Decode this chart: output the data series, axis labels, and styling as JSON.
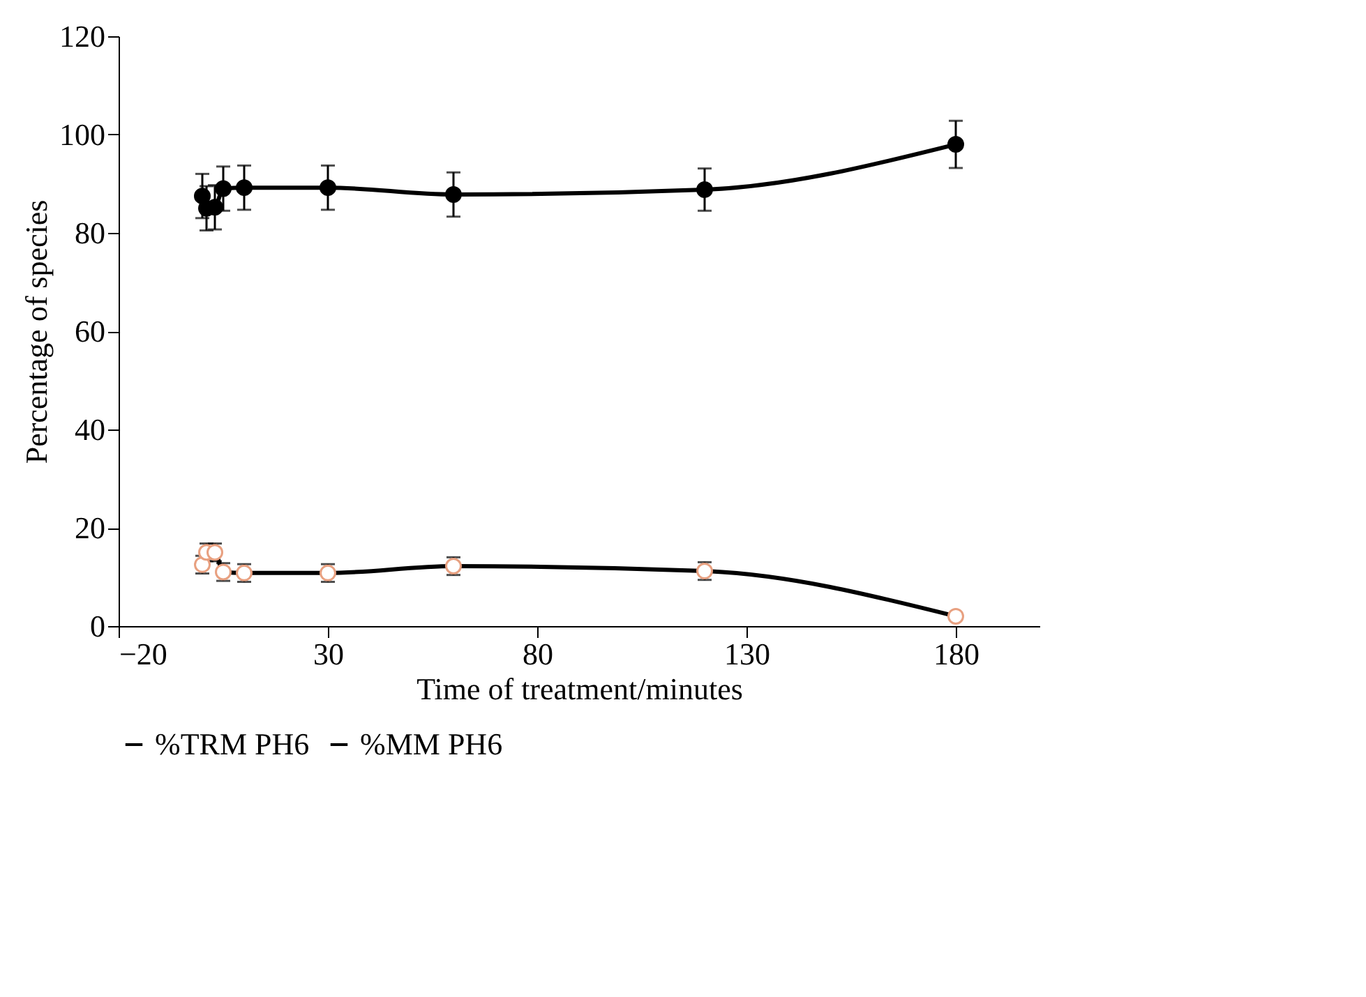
{
  "chart_data": {
    "type": "line",
    "xlabel": "Time of treatment/minutes",
    "ylabel": "Percentage  of species",
    "x": [
      0,
      1,
      3,
      5,
      10,
      30,
      60,
      120,
      180
    ],
    "xlim": [
      -20,
      200
    ],
    "xticks": [
      -20,
      30,
      80,
      130,
      180
    ],
    "ylim": [
      0,
      120
    ],
    "yticks": [
      0,
      20,
      40,
      60,
      80,
      100,
      120
    ],
    "grid": false,
    "legend": "bottom",
    "marker": "circle",
    "series": [
      {
        "name": "%TRM PH6",
        "color": "#000000",
        "values": [
          87.5,
          85,
          85.2,
          89,
          89.2,
          89.2,
          87.8,
          88.8,
          98
        ],
        "errors": [
          4.5,
          4.5,
          4.5,
          4.5,
          4.5,
          4.5,
          4.5,
          4.3,
          4.8
        ]
      },
      {
        "name": "%MM PH6",
        "color": "#000000",
        "values": [
          12.5,
          15,
          15,
          11,
          10.8,
          10.8,
          12.2,
          11.2,
          2
        ],
        "errors": [
          1.8,
          1.8,
          1.8,
          1.8,
          1.8,
          1.8,
          1.8,
          1.8,
          null
        ]
      }
    ]
  }
}
